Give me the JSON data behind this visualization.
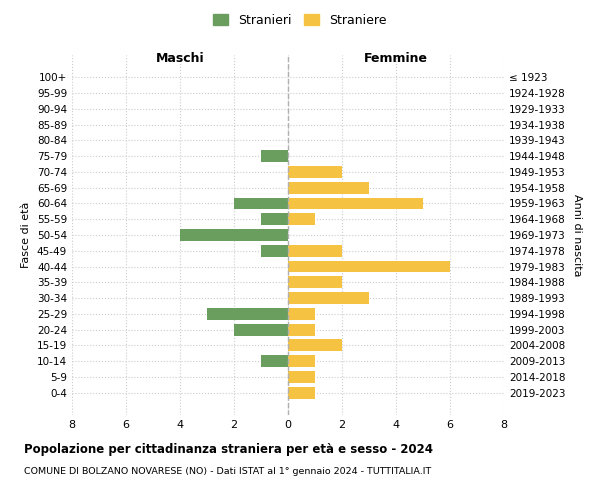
{
  "age_groups": [
    "100+",
    "95-99",
    "90-94",
    "85-89",
    "80-84",
    "75-79",
    "70-74",
    "65-69",
    "60-64",
    "55-59",
    "50-54",
    "45-49",
    "40-44",
    "35-39",
    "30-34",
    "25-29",
    "20-24",
    "15-19",
    "10-14",
    "5-9",
    "0-4"
  ],
  "birth_years": [
    "≤ 1923",
    "1924-1928",
    "1929-1933",
    "1934-1938",
    "1939-1943",
    "1944-1948",
    "1949-1953",
    "1954-1958",
    "1959-1963",
    "1964-1968",
    "1969-1973",
    "1974-1978",
    "1979-1983",
    "1984-1988",
    "1989-1993",
    "1994-1998",
    "1999-2003",
    "2004-2008",
    "2009-2013",
    "2014-2018",
    "2019-2023"
  ],
  "males": [
    0,
    0,
    0,
    0,
    0,
    1,
    0,
    0,
    2,
    1,
    4,
    1,
    0,
    0,
    0,
    3,
    2,
    0,
    1,
    0,
    0
  ],
  "females": [
    0,
    0,
    0,
    0,
    0,
    0,
    2,
    3,
    5,
    1,
    0,
    2,
    6,
    2,
    3,
    1,
    1,
    2,
    1,
    1,
    1
  ],
  "male_color": "#6a9e5f",
  "female_color": "#f5c242",
  "background_color": "#ffffff",
  "grid_color": "#cccccc",
  "title": "Popolazione per cittadinanza straniera per età e sesso - 2024",
  "subtitle": "COMUNE DI BOLZANO NOVARESE (NO) - Dati ISTAT al 1° gennaio 2024 - TUTTITALIA.IT",
  "xlabel_left": "Maschi",
  "xlabel_right": "Femmine",
  "ylabel_left": "Fasce di età",
  "ylabel_right": "Anni di nascita",
  "legend_male": "Stranieri",
  "legend_female": "Straniere",
  "xlim": 8,
  "bar_height": 0.75
}
